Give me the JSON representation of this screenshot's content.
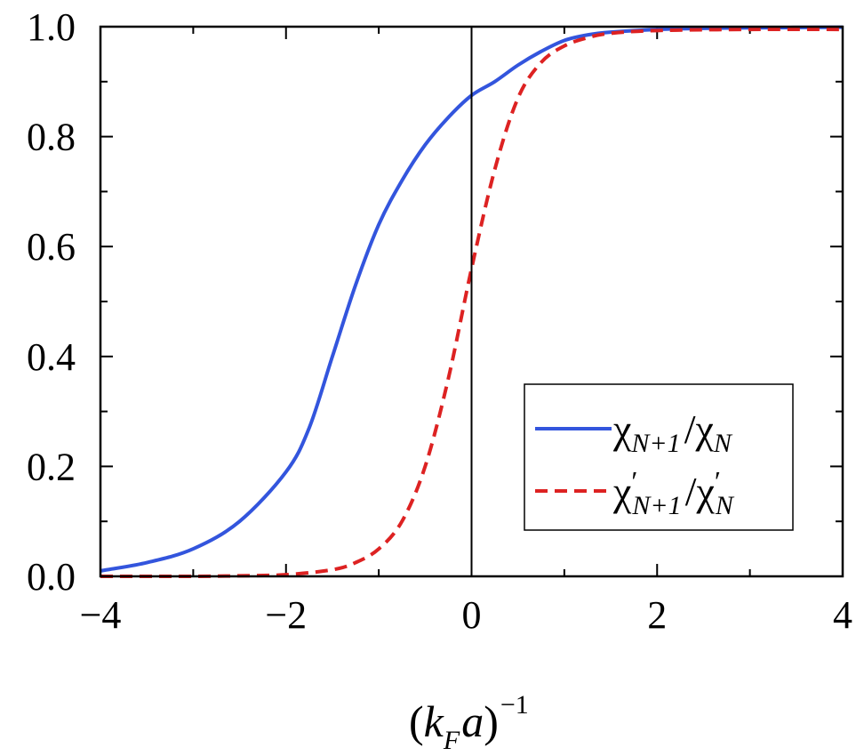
{
  "chart_data": {
    "type": "line",
    "title": "",
    "xlabel": {
      "open": "(",
      "k": "k",
      "k_sub": "F",
      "a": "a",
      "close": ")",
      "exp": "−1"
    },
    "ylabel": "",
    "xlim": [
      -4,
      4
    ],
    "ylim": [
      0,
      1
    ],
    "x_ticks": [
      -4,
      -2,
      0,
      2,
      4
    ],
    "x_tick_labels": [
      "−4",
      "−2",
      "0",
      "2",
      "4"
    ],
    "y_ticks": [
      0,
      0.2,
      0.4,
      0.6,
      0.8,
      1.0
    ],
    "y_tick_labels": [
      "0.0",
      "0.2",
      "0.4",
      "0.6",
      "0.8",
      "1.0"
    ],
    "grid": false,
    "legend_position": "bottom-right",
    "reference_line_x": 0,
    "series": [
      {
        "label": {
          "chi": "χ",
          "sub1": "N+1",
          "slash": "/",
          "chi2": "χ",
          "sub2": "N"
        },
        "color": "#3355dd",
        "style": "solid",
        "x": [
          -4.0,
          -3.5,
          -3.0,
          -2.5,
          -2.0,
          -1.75,
          -1.5,
          -1.25,
          -1.0,
          -0.75,
          -0.5,
          -0.25,
          0.0,
          0.25,
          0.5,
          0.75,
          1.0,
          1.25,
          1.5,
          2.0,
          2.5,
          3.0,
          4.0
        ],
        "y": [
          0.01,
          0.025,
          0.05,
          0.1,
          0.19,
          0.27,
          0.4,
          0.53,
          0.64,
          0.72,
          0.785,
          0.835,
          0.875,
          0.9,
          0.93,
          0.955,
          0.975,
          0.985,
          0.99,
          0.995,
          0.997,
          0.998,
          0.999
        ]
      },
      {
        "label": {
          "chi": "χ",
          "prime1": "′",
          "sub1": "N+1",
          "slash": "/",
          "chi2": "χ",
          "prime2": "′",
          "sub2": "N"
        },
        "color": "#dd2222",
        "style": "dashed",
        "x": [
          -4.0,
          -3.0,
          -2.5,
          -2.0,
          -1.5,
          -1.25,
          -1.0,
          -0.75,
          -0.5,
          -0.25,
          0.0,
          0.25,
          0.5,
          0.75,
          1.0,
          1.25,
          1.5,
          2.0,
          3.0,
          4.0
        ],
        "y": [
          0.0,
          0.0,
          0.001,
          0.003,
          0.012,
          0.025,
          0.05,
          0.1,
          0.2,
          0.36,
          0.56,
          0.74,
          0.87,
          0.935,
          0.965,
          0.98,
          0.988,
          0.993,
          0.995,
          0.995
        ]
      }
    ]
  }
}
